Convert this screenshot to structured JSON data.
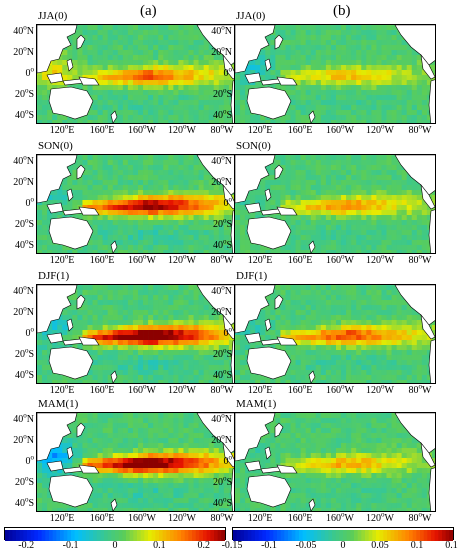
{
  "column_labels": [
    "(a)",
    "(b)"
  ],
  "seasons": [
    "JJA(0)",
    "SON(0)",
    "DJF(1)",
    "MAM(1)"
  ],
  "lat_ticks": [
    {
      "deg": "40",
      "hemi": "N"
    },
    {
      "deg": "20",
      "hemi": "N"
    },
    {
      "deg": "0",
      "hemi": ""
    },
    {
      "deg": "20",
      "hemi": "S"
    },
    {
      "deg": "40",
      "hemi": "S"
    }
  ],
  "lon_ticks": [
    {
      "deg": "120",
      "hemi": "E"
    },
    {
      "deg": "160",
      "hemi": "E"
    },
    {
      "deg": "160",
      "hemi": "W"
    },
    {
      "deg": "120",
      "hemi": "W"
    },
    {
      "deg": "80",
      "hemi": "W"
    }
  ],
  "colorbars": [
    {
      "ticks": [
        "-0.2",
        "-0.1",
        "0",
        "0.1",
        "0.2"
      ],
      "range": [
        -0.25,
        0.25
      ]
    },
    {
      "ticks": [
        "-0.15",
        "-0.1",
        "-0.05",
        "0",
        "0.05",
        "0.1",
        "0.15"
      ],
      "range": [
        -0.15,
        0.15
      ]
    }
  ],
  "colors": {
    "low": "#0000b4",
    "mid": "#3dc27a",
    "high": "#b40000",
    "land": "#ffffff"
  },
  "chart_data": [
    {
      "type": "heatmap",
      "panel": "a",
      "season": "JJA(0)",
      "tongue_strength": 0.55,
      "west_strength": 0.7
    },
    {
      "type": "heatmap",
      "panel": "b",
      "season": "JJA(0)",
      "tongue_strength": 0.35,
      "west_strength": -0.4
    },
    {
      "type": "heatmap",
      "panel": "a",
      "season": "SON(0)",
      "tongue_strength": 0.85,
      "west_strength": -0.3
    },
    {
      "type": "heatmap",
      "panel": "b",
      "season": "SON(0)",
      "tongue_strength": 0.45,
      "west_strength": -0.2
    },
    {
      "type": "heatmap",
      "panel": "a",
      "season": "DJF(1)",
      "tongue_strength": 1.0,
      "west_strength": -0.5
    },
    {
      "type": "heatmap",
      "panel": "b",
      "season": "DJF(1)",
      "tongue_strength": 0.6,
      "west_strength": -0.3
    },
    {
      "type": "heatmap",
      "panel": "a",
      "season": "MAM(1)",
      "tongue_strength": 0.95,
      "west_strength": -0.9
    },
    {
      "type": "heatmap",
      "panel": "b",
      "season": "MAM(1)",
      "tongue_strength": 0.4,
      "west_strength": -0.2
    }
  ]
}
